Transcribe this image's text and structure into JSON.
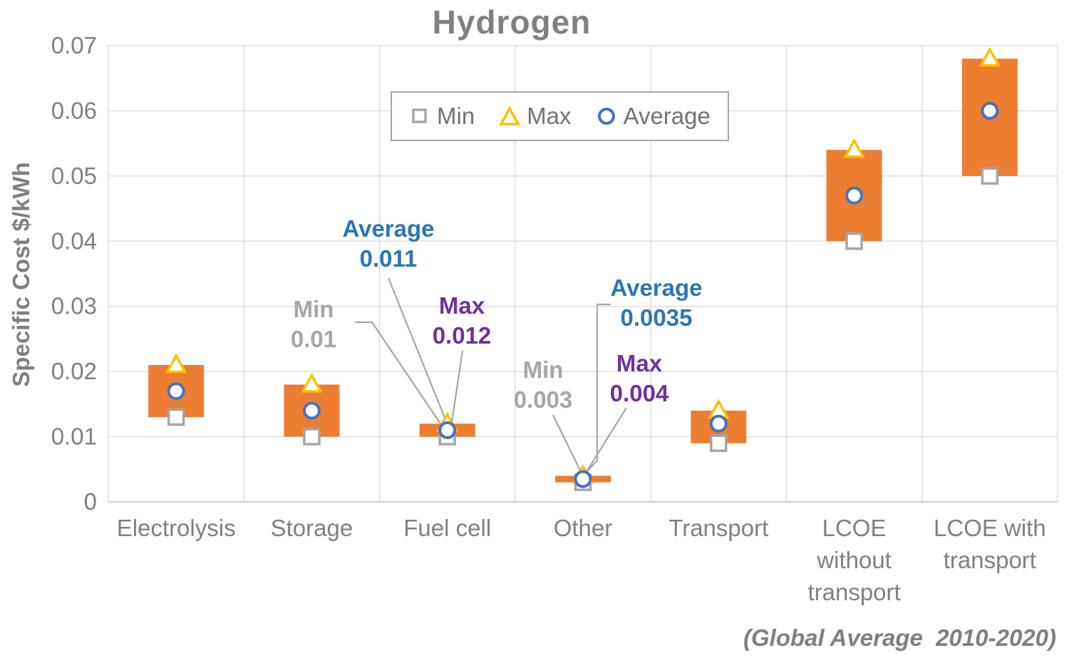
{
  "title": "Hydrogen",
  "y_axis_title": "Specific Cost $/kWh",
  "footnote": "(Global Average  2010-2020)",
  "legend": {
    "items": [
      {
        "label": "Min",
        "marker": "square",
        "color": "#A6A6A6"
      },
      {
        "label": "Max",
        "marker": "triangle",
        "color": "#FFC000"
      },
      {
        "label": "Average",
        "marker": "circle",
        "color": "#4472C4"
      }
    ]
  },
  "chart_data": {
    "type": "bar",
    "subtype": "floating-range-bars-with-min-max-average-markers",
    "title": "Hydrogen",
    "ylabel": "Specific Cost $/kWh",
    "ylim": [
      0,
      0.07
    ],
    "yticks": [
      "0",
      "0.01",
      "0.02",
      "0.03",
      "0.04",
      "0.05",
      "0.06",
      "0.07"
    ],
    "grid": true,
    "legend_position": "top-center",
    "bar_color": "#ED7D31",
    "gridline_color": "#D9D9D9",
    "axis_text_color": "#808080",
    "categories": [
      "Electrolysis",
      "Storage",
      "Fuel cell",
      "Other",
      "Transport",
      "LCOE without transport",
      "LCOE with transport"
    ],
    "category_label_lines": [
      [
        "Electrolysis"
      ],
      [
        "Storage"
      ],
      [
        "Fuel cell"
      ],
      [
        "Other"
      ],
      [
        "Transport"
      ],
      [
        "LCOE",
        "without",
        "transport"
      ],
      [
        "LCOE with",
        "transport"
      ]
    ],
    "series": [
      {
        "name": "Min",
        "marker": "square",
        "color": "#A6A6A6",
        "values": [
          0.013,
          0.01,
          0.01,
          0.003,
          0.009,
          0.04,
          0.05
        ]
      },
      {
        "name": "Max",
        "marker": "triangle",
        "color": "#FFC000",
        "values": [
          0.021,
          0.018,
          0.012,
          0.004,
          0.014,
          0.054,
          0.068
        ]
      },
      {
        "name": "Average",
        "marker": "circle",
        "color": "#4472C4",
        "values": [
          0.017,
          0.014,
          0.011,
          0.0035,
          0.012,
          0.047,
          0.06
        ]
      }
    ],
    "annotations": [
      {
        "label": "Average",
        "value": "0.011",
        "color": "#2E75B6",
        "category": "Fuel cell",
        "series": "Average"
      },
      {
        "label": "Min",
        "value": "0.01",
        "color": "#A6A6A6",
        "category": "Fuel cell",
        "series": "Min"
      },
      {
        "label": "Max",
        "value": "0.012",
        "color": "#7030A0",
        "category": "Fuel cell",
        "series": "Max"
      },
      {
        "label": "Min",
        "value": "0.003",
        "color": "#A6A6A6",
        "category": "Other",
        "series": "Min"
      },
      {
        "label": "Average",
        "value": "0.0035",
        "color": "#2E75B6",
        "category": "Other",
        "series": "Average"
      },
      {
        "label": "Max",
        "value": "0.004",
        "color": "#7030A0",
        "category": "Other",
        "series": "Max"
      }
    ]
  }
}
